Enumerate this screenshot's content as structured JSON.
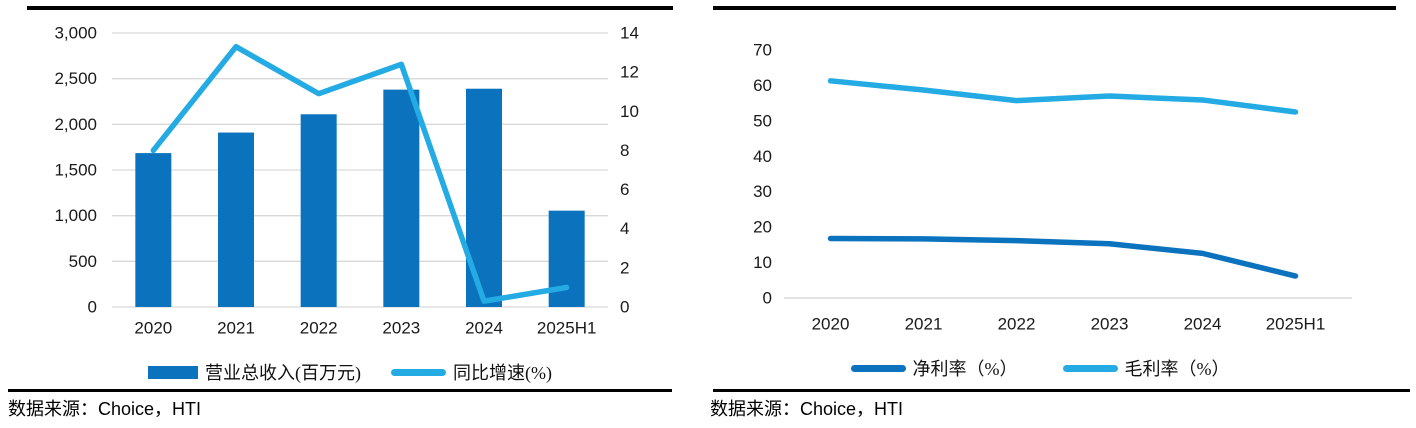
{
  "colors": {
    "primary_blue": "#0B72BE",
    "light_blue": "#24ABE4",
    "gridline": "#D9D9D9",
    "text": "#1A1A1A",
    "rule_black": "#000000"
  },
  "chart_data": [
    {
      "type": "bar",
      "subtype": "combo-bar-line-dual-axis",
      "categories": [
        "2020",
        "2021",
        "2022",
        "2023",
        "2024",
        "2025H1"
      ],
      "series": [
        {
          "name": "营业总收入(百万元)",
          "chart_type": "bar",
          "axis": "left",
          "color": "#0B72BE",
          "values": [
            1685,
            1910,
            2110,
            2380,
            2390,
            1055
          ]
        },
        {
          "name": "同比增速(%)",
          "chart_type": "line",
          "axis": "right",
          "color": "#24ABE4",
          "values": [
            8.0,
            13.3,
            10.9,
            12.4,
            0.3,
            1.0
          ]
        }
      ],
      "left_axis": {
        "min": 0,
        "max": 3000,
        "step": 500,
        "tick_labels": [
          "3,000",
          "2,500",
          "2,000",
          "1,500",
          "1,000",
          "500",
          "0"
        ]
      },
      "right_axis": {
        "min": 0,
        "max": 14,
        "step": 2,
        "tick_labels": [
          "14",
          "12",
          "10",
          "8",
          "6",
          "4",
          "2",
          "0"
        ]
      },
      "grid": true,
      "legend_position": "bottom",
      "title": "",
      "xlabel": "",
      "ylabel": ""
    },
    {
      "type": "line",
      "categories": [
        "2020",
        "2021",
        "2022",
        "2023",
        "2024",
        "2025H1"
      ],
      "series": [
        {
          "name": "净利率（%）",
          "chart_type": "line",
          "color": "#0B72BE",
          "values": [
            16.8,
            16.7,
            16.2,
            15.3,
            12.6,
            6.2
          ]
        },
        {
          "name": "毛利率（%）",
          "chart_type": "line",
          "color": "#24ABE4",
          "values": [
            61.3,
            58.7,
            55.7,
            57.0,
            55.9,
            52.5
          ]
        }
      ],
      "y_axis": {
        "min": 0,
        "max": 70,
        "step": 10,
        "tick_labels": [
          "70",
          "60",
          "50",
          "40",
          "30",
          "20",
          "10",
          "0"
        ]
      },
      "grid": false,
      "legend_position": "bottom",
      "title": "",
      "xlabel": "",
      "ylabel": ""
    }
  ],
  "captions": [
    {
      "zh": "数据来源：",
      "latin": "Choice，HTI"
    },
    {
      "zh": "数据来源：",
      "latin": "Choice，HTI"
    }
  ]
}
